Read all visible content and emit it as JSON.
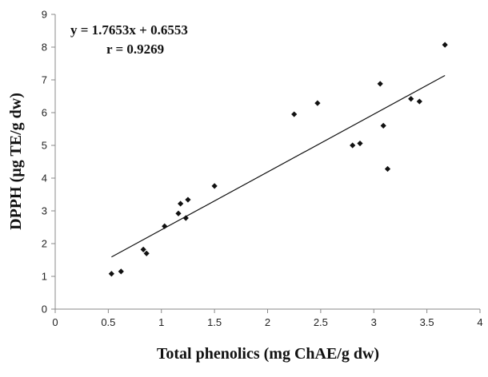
{
  "chart_data": {
    "type": "scatter",
    "xlabel": "Total phenolics (mg ChAE/g dw)",
    "ylabel": "DPPH (µg TE/g dw)",
    "xlim": [
      0,
      4
    ],
    "ylim": [
      0,
      9
    ],
    "x_ticks": [
      "0",
      "0.5",
      "1",
      "1.5",
      "2",
      "2.5",
      "3",
      "3.5",
      "4"
    ],
    "y_ticks": [
      "0",
      "1",
      "2",
      "3",
      "4",
      "5",
      "6",
      "7",
      "8",
      "9"
    ],
    "grid": false,
    "legend": "none",
    "marker": "diamond",
    "marker_color": "#111111",
    "points": [
      {
        "x": 0.53,
        "y": 1.08
      },
      {
        "x": 0.62,
        "y": 1.15
      },
      {
        "x": 0.83,
        "y": 1.82
      },
      {
        "x": 0.86,
        "y": 1.7
      },
      {
        "x": 1.03,
        "y": 2.53
      },
      {
        "x": 1.16,
        "y": 2.92
      },
      {
        "x": 1.18,
        "y": 3.22
      },
      {
        "x": 1.23,
        "y": 2.78
      },
      {
        "x": 1.25,
        "y": 3.34
      },
      {
        "x": 1.5,
        "y": 3.76
      },
      {
        "x": 2.25,
        "y": 5.95
      },
      {
        "x": 2.47,
        "y": 6.29
      },
      {
        "x": 2.8,
        "y": 5.0
      },
      {
        "x": 2.87,
        "y": 5.06
      },
      {
        "x": 3.06,
        "y": 6.88
      },
      {
        "x": 3.09,
        "y": 5.6
      },
      {
        "x": 3.13,
        "y": 4.28
      },
      {
        "x": 3.35,
        "y": 6.42
      },
      {
        "x": 3.43,
        "y": 6.34
      },
      {
        "x": 3.67,
        "y": 8.07
      }
    ],
    "trendline": {
      "slope": 1.7653,
      "intercept": 0.6553,
      "x_range": [
        0.53,
        3.67
      ],
      "color": "#111111"
    },
    "annotations": {
      "equation": "y = 1.7653x + 0.6553",
      "r_value": "r = 0.9269"
    }
  }
}
